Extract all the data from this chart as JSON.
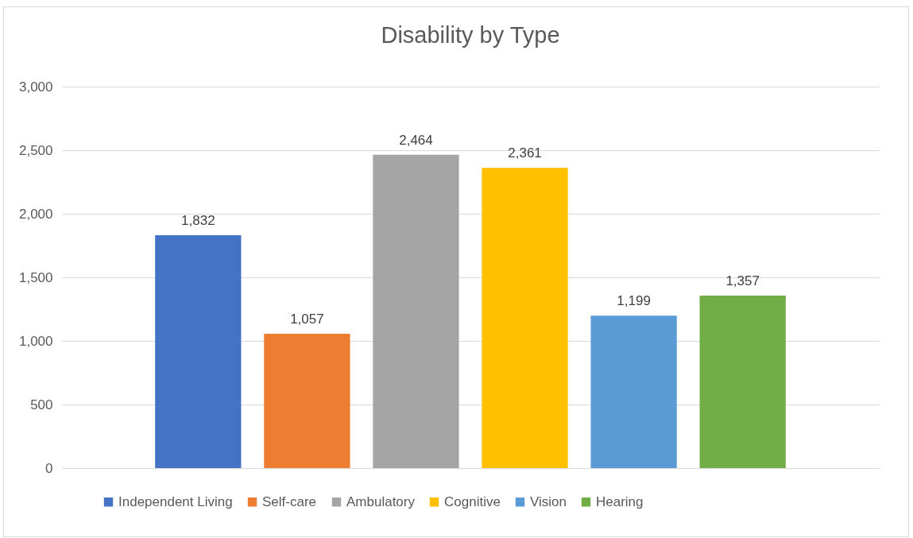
{
  "chart_data": {
    "type": "bar",
    "title": "Disability by Type",
    "categories": [
      null
    ],
    "series": [
      {
        "name": "Independent Living",
        "color": "#4472c4",
        "values": [
          1832
        ],
        "value_labels": [
          "1,832"
        ]
      },
      {
        "name": "Self-care",
        "color": "#ed7d31",
        "values": [
          1057
        ],
        "value_labels": [
          "1,057"
        ]
      },
      {
        "name": "Ambulatory",
        "color": "#a5a5a5",
        "values": [
          2464
        ],
        "value_labels": [
          "2,464"
        ]
      },
      {
        "name": "Cognitive",
        "color": "#ffc000",
        "values": [
          2361
        ],
        "value_labels": [
          "2,361"
        ]
      },
      {
        "name": "Vision",
        "color": "#5b9bd5",
        "values": [
          1199
        ],
        "value_labels": [
          "1,199"
        ]
      },
      {
        "name": "Hearing",
        "color": "#70ad47",
        "values": [
          1357
        ],
        "value_labels": [
          "1,357"
        ]
      }
    ],
    "ylim": [
      0,
      3000
    ],
    "yticks": [
      0,
      {
        "value": 500,
        "label": "500"
      },
      {
        "value": 1000,
        "label": "1,000"
      },
      {
        "value": 1500,
        "label": "1,500"
      },
      {
        "value": 2000,
        "label": "2,000"
      },
      {
        "value": 2500,
        "label": "2,500"
      },
      {
        "value": 3000,
        "label": "3,000"
      }
    ],
    "grid": "y",
    "legend": "bottom"
  }
}
